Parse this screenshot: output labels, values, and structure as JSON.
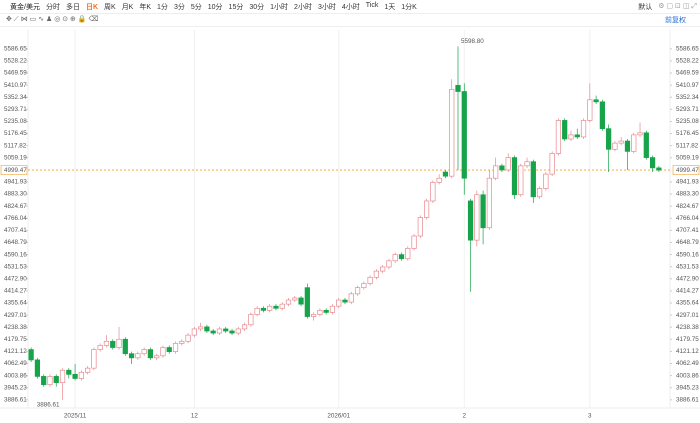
{
  "toolbar": {
    "symbol": "黄金/美元",
    "periods": [
      "分时",
      "多日",
      "日K",
      "周K",
      "月K",
      "年K",
      "1分",
      "3分",
      "5分",
      "10分",
      "15分",
      "30分",
      "1小时",
      "2小时",
      "3小时",
      "4小时",
      "Tick",
      "1天",
      "1分K"
    ],
    "active_period_index": 2,
    "theme": "默认",
    "adjust": "前复权"
  },
  "chart_data": {
    "type": "candlestick",
    "categories": [
      null,
      null,
      null,
      null,
      null,
      null,
      null,
      "2025/11",
      null,
      null,
      null,
      null,
      null,
      null,
      null,
      null,
      null,
      null,
      null,
      null,
      null,
      null,
      null,
      null,
      null,
      null,
      "12",
      null,
      null,
      null,
      null,
      null,
      null,
      null,
      null,
      null,
      null,
      null,
      null,
      null,
      null,
      null,
      null,
      null,
      null,
      null,
      null,
      null,
      null,
      "2026/01",
      null,
      null,
      null,
      null,
      null,
      null,
      null,
      null,
      null,
      null,
      null,
      null,
      null,
      null,
      null,
      null,
      null,
      null,
      null,
      "2",
      null,
      null,
      null,
      null,
      null,
      null,
      null,
      null,
      null,
      null,
      null,
      null,
      null,
      null,
      null,
      null,
      null,
      null,
      null,
      "3",
      null,
      null,
      null,
      null,
      null,
      null,
      null,
      null,
      null,
      null,
      null
    ],
    "open": [
      4130,
      4080,
      4000,
      3960,
      4000,
      3970,
      4030,
      4010,
      3990,
      4020,
      4040,
      4130,
      4150,
      4170,
      4140,
      4180,
      4110,
      4090,
      4110,
      4130,
      4090,
      4100,
      4140,
      4120,
      4160,
      4170,
      4200,
      4230,
      4240,
      4220,
      4210,
      4230,
      4220,
      4210,
      4230,
      4250,
      4300,
      4330,
      4320,
      4340,
      4330,
      4350,
      4370,
      4380,
      4430,
      4290,
      4300,
      4320,
      4310,
      4340,
      4370,
      4360,
      4400,
      4430,
      4450,
      4480,
      4510,
      4530,
      4560,
      4590,
      4570,
      4620,
      4680,
      4770,
      4850,
      4940,
      4990,
      4970,
      5410,
      5380,
      4850,
      4660,
      4880,
      4720,
      4960,
      5020,
      5000,
      5060,
      4880,
      5020,
      5040,
      4870,
      4910,
      4980,
      5080,
      5240,
      5150,
      5170,
      5160,
      5240,
      5340,
      5330,
      5200,
      5100,
      5130,
      5140,
      5090,
      5170,
      5180,
      5060,
      5010
    ],
    "high": [
      4140,
      4090,
      4010,
      4010,
      4010,
      4040,
      4040,
      4060,
      4030,
      4050,
      4140,
      4160,
      4200,
      4180,
      4240,
      4190,
      4120,
      4120,
      4140,
      4140,
      4110,
      4150,
      4150,
      4170,
      4180,
      4210,
      4240,
      4260,
      4250,
      4230,
      4240,
      4240,
      4230,
      4240,
      4260,
      4310,
      4340,
      4340,
      4350,
      4350,
      4360,
      4380,
      4390,
      4390,
      4450,
      4310,
      4330,
      4330,
      4350,
      4380,
      4380,
      4410,
      4440,
      4460,
      4490,
      4520,
      4540,
      4570,
      4600,
      4600,
      4630,
      4690,
      4780,
      4860,
      4950,
      4980,
      5000,
      5440,
      5598.8,
      5420,
      4860,
      4900,
      4900,
      5000,
      5060,
      5030,
      5080,
      5070,
      5030,
      5060,
      5050,
      4920,
      4990,
      5090,
      5250,
      5250,
      5190,
      5200,
      5250,
      5420,
      5360,
      5340,
      5220,
      5140,
      5160,
      5150,
      5180,
      5230,
      5190,
      5070,
      5020
    ],
    "low": [
      4070,
      3990,
      3950,
      3950,
      3950,
      3886.61,
      3990,
      3980,
      3980,
      4010,
      4030,
      4120,
      4140,
      4130,
      4130,
      4100,
      4060,
      4080,
      4100,
      4080,
      4080,
      4090,
      4110,
      4110,
      4150,
      4160,
      4190,
      4220,
      4210,
      4200,
      4200,
      4210,
      4200,
      4200,
      4220,
      4240,
      4290,
      4310,
      4310,
      4320,
      4320,
      4340,
      4360,
      4340,
      4280,
      4270,
      4290,
      4300,
      4300,
      4330,
      4350,
      4350,
      4390,
      4420,
      4440,
      4470,
      4500,
      4520,
      4550,
      4560,
      4560,
      4610,
      4670,
      4760,
      4840,
      4930,
      4960,
      4960,
      5000,
      4880,
      4410,
      4630,
      4640,
      4710,
      4950,
      4990,
      4990,
      4860,
      4870,
      5010,
      4840,
      4860,
      4900,
      4970,
      5070,
      5140,
      5140,
      5150,
      5150,
      5230,
      5320,
      5190,
      4990,
      5090,
      5120,
      5000,
      5080,
      5160,
      5050,
      4990,
      4990
    ],
    "close": [
      4080,
      4000,
      3960,
      4000,
      3970,
      4030,
      4010,
      3990,
      4020,
      4040,
      4130,
      4150,
      4170,
      4140,
      4180,
      4110,
      4090,
      4110,
      4130,
      4090,
      4100,
      4140,
      4120,
      4160,
      4170,
      4200,
      4230,
      4240,
      4220,
      4210,
      4230,
      4220,
      4210,
      4230,
      4250,
      4300,
      4330,
      4320,
      4340,
      4330,
      4350,
      4370,
      4380,
      4350,
      4290,
      4300,
      4320,
      4310,
      4340,
      4370,
      4360,
      4400,
      4430,
      4450,
      4480,
      4510,
      4530,
      4560,
      4590,
      4570,
      4620,
      4680,
      4770,
      4850,
      4940,
      4960,
      4970,
      5390,
      5380,
      4960,
      4660,
      4880,
      4720,
      4960,
      5020,
      5000,
      5060,
      4880,
      5020,
      5040,
      4870,
      4910,
      4980,
      5080,
      5240,
      5150,
      5170,
      5160,
      5240,
      5340,
      5330,
      5200,
      5100,
      5130,
      5140,
      5090,
      5170,
      5180,
      5060,
      5010,
      4999.47
    ],
    "up_color": "#e8898f",
    "down_color": "#16a34a",
    "ylim": [
      3847,
      5678
    ],
    "yticks": [
      5586.65,
      5528.22,
      5469.59,
      5410.97,
      5352.34,
      5293.71,
      5235.08,
      5176.45,
      5117.82,
      5059.19,
      4941.93,
      {
        "value": 4883.3,
        "label": "4883.30"
      },
      4824.67,
      4766.04,
      4707.41,
      4648.79,
      4590.16,
      4531.53,
      {
        "value": 4472.9,
        "label": "4472.90"
      },
      4414.27,
      4355.64,
      4297.01,
      4238.38,
      4179.75,
      4121.12,
      4062.49,
      4003.86,
      3945.23,
      3886.61
    ],
    "last_price": 4999.47,
    "last_price_color": "#f0a030",
    "annotations": {
      "high": "5598.80",
      "low": "3886.61"
    }
  }
}
